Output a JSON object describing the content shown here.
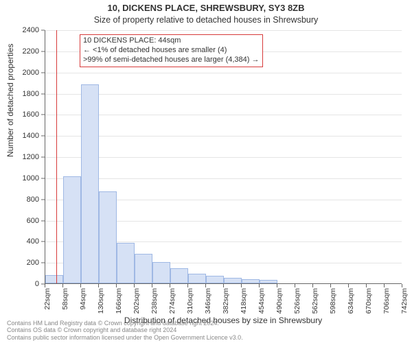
{
  "header": {
    "address": "10, DICKENS PLACE, SHREWSBURY, SY3 8ZB",
    "subtitle": "Size of property relative to detached houses in Shrewsbury"
  },
  "axes": {
    "y_label": "Number of detached properties",
    "x_label": "Distribution of detached houses by size in Shrewsbury",
    "label_fontsize": 12
  },
  "chart": {
    "type": "histogram",
    "background_color": "#ffffff",
    "grid_color": "#e5e5e5",
    "axis_color": "#666666",
    "bar_fill": "#d6e1f5",
    "bar_stroke": "#9fb8e4",
    "marker_line_color": "#d73a3a",
    "annotation_border": "#d73a3a",
    "ylim": [
      0,
      2400
    ],
    "ytick_step": 200,
    "yticks": [
      0,
      200,
      400,
      600,
      800,
      1000,
      1200,
      1400,
      1600,
      1800,
      2000,
      2200,
      2400
    ],
    "x_bin_start": 22,
    "x_bin_width_sqm": 36,
    "x_tick_labels": [
      "22sqm",
      "58sqm",
      "94sqm",
      "130sqm",
      "166sqm",
      "202sqm",
      "238sqm",
      "274sqm",
      "310sqm",
      "346sqm",
      "382sqm",
      "418sqm",
      "454sqm",
      "490sqm",
      "526sqm",
      "562sqm",
      "598sqm",
      "634sqm",
      "670sqm",
      "706sqm",
      "742sqm"
    ],
    "bar_values": [
      80,
      1010,
      1880,
      870,
      380,
      280,
      200,
      140,
      90,
      70,
      50,
      40,
      30,
      0,
      0,
      0,
      0,
      0,
      0,
      0
    ],
    "marker_sqm": 44
  },
  "annotation": {
    "line1": "10 DICKENS PLACE: 44sqm",
    "line2": "← <1% of detached houses are smaller (4)",
    "line3": ">99% of semi-detached houses are larger (4,384) →"
  },
  "footer": {
    "line1": "Contains HM Land Registry data © Crown copyright and database right 2024.",
    "line2": "Contains OS data © Crown copyright and database right 2024",
    "line3": "Contains public sector information licensed under the Open Government Licence v3.0."
  }
}
